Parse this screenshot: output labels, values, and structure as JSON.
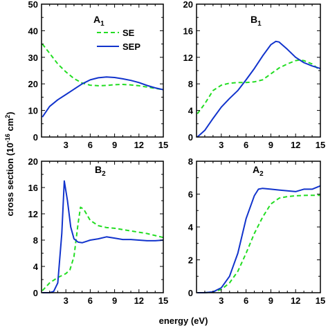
{
  "figure": {
    "xlabel": "energy (eV)",
    "ylabel_main": "cross section (10",
    "ylabel_exp1": "-16",
    "ylabel_mid": " cm",
    "ylabel_exp2": "2",
    "ylabel_end": ")"
  },
  "colors": {
    "SE": "#22dd22",
    "SEP": "#1133cc"
  },
  "legend": {
    "items": [
      "SE",
      "SEP"
    ],
    "placement": "top-right of panel A1"
  },
  "chart_data": [
    {
      "type": "line",
      "panel_main": "A",
      "panel_sub": "1",
      "xlim": [
        0,
        15
      ],
      "ylim": [
        0,
        50
      ],
      "xticks": [
        3,
        6,
        9,
        12,
        15
      ],
      "yticks": [
        0,
        10,
        20,
        30,
        40,
        50
      ],
      "series": [
        {
          "name": "SE",
          "style": "dashed",
          "x": [
            0.1,
            1,
            2,
            3,
            4,
            5,
            6,
            7,
            8,
            9,
            10,
            11,
            12,
            13,
            14,
            15
          ],
          "y": [
            35,
            31.5,
            27.5,
            24.5,
            22,
            20.3,
            19.5,
            19.3,
            19.4,
            19.7,
            19.8,
            19.6,
            19.3,
            18.8,
            18.3,
            17.8
          ]
        },
        {
          "name": "SEP",
          "style": "solid",
          "x": [
            0.1,
            1,
            2,
            3,
            4,
            5,
            6,
            7,
            8,
            9,
            10,
            11,
            12,
            13,
            14,
            15
          ],
          "y": [
            7.5,
            11.5,
            14,
            16,
            18,
            20,
            21.5,
            22.3,
            22.6,
            22.4,
            21.9,
            21.3,
            20.5,
            19.4,
            18.5,
            17.8
          ]
        }
      ]
    },
    {
      "type": "line",
      "panel_main": "B",
      "panel_sub": "1",
      "xlim": [
        0,
        15
      ],
      "ylim": [
        0,
        20
      ],
      "xticks": [
        3,
        6,
        9,
        12,
        15
      ],
      "yticks": [
        0,
        4,
        8,
        12,
        16,
        20
      ],
      "series": [
        {
          "name": "SE",
          "style": "dashed",
          "x": [
            0.1,
            1,
            2,
            3,
            4,
            5,
            6,
            7,
            8,
            9,
            10,
            11,
            12,
            12.5,
            13,
            14,
            15
          ],
          "y": [
            3.5,
            5,
            7,
            7.8,
            8.1,
            8.2,
            8.2,
            8.3,
            8.6,
            9.5,
            10.4,
            11,
            11.5,
            11.6,
            11.5,
            11,
            10
          ]
        },
        {
          "name": "SEP",
          "style": "solid",
          "x": [
            0.1,
            1,
            2,
            3,
            4,
            5,
            6,
            7,
            8,
            9,
            9.6,
            10,
            11,
            12,
            13,
            14,
            15
          ],
          "y": [
            0,
            1,
            2.8,
            4.5,
            5.8,
            7,
            8.6,
            10.3,
            12.2,
            13.9,
            14.4,
            14.3,
            13.2,
            12,
            11.2,
            10.7,
            10.3
          ]
        }
      ]
    },
    {
      "type": "line",
      "panel_main": "B",
      "panel_sub": "2",
      "xlim": [
        0,
        15
      ],
      "ylim": [
        0,
        20
      ],
      "xticks": [
        3,
        6,
        9,
        12,
        15
      ],
      "yticks": [
        0,
        4,
        8,
        12,
        16,
        20
      ],
      "series": [
        {
          "name": "SE",
          "style": "dashed",
          "x": [
            0.1,
            1,
            2,
            3,
            3.5,
            4,
            4.5,
            4.8,
            5.2,
            6,
            7,
            8,
            9,
            10,
            11,
            12,
            13,
            14,
            15
          ],
          "y": [
            0.3,
            1.5,
            2.3,
            2.9,
            3.5,
            5.5,
            10.5,
            13,
            12.7,
            11,
            10.2,
            9.9,
            9.8,
            9.6,
            9.4,
            9.2,
            9,
            8.7,
            8.4
          ]
        },
        {
          "name": "SEP",
          "style": "solid",
          "x": [
            0.1,
            1,
            1.5,
            2,
            2.5,
            2.8,
            3.2,
            3.6,
            4,
            4.5,
            5,
            6,
            7,
            8,
            9,
            10,
            11,
            12,
            13,
            14,
            15
          ],
          "y": [
            0,
            0,
            0.2,
            1.5,
            9,
            17,
            14,
            10,
            8.2,
            7.7,
            7.6,
            8,
            8.2,
            8.5,
            8.3,
            8.1,
            8.1,
            8,
            7.9,
            7.9,
            8
          ]
        }
      ]
    },
    {
      "type": "line",
      "panel_main": "A",
      "panel_sub": "2",
      "xlim": [
        0,
        15
      ],
      "ylim": [
        0,
        8
      ],
      "xticks": [
        3,
        6,
        9,
        12,
        15
      ],
      "yticks": [
        0,
        2,
        4,
        6,
        8
      ],
      "series": [
        {
          "name": "SE",
          "style": "dashed",
          "x": [
            0.1,
            1,
            2,
            3,
            4,
            5,
            6,
            7,
            8,
            9,
            10,
            11,
            12,
            13,
            14,
            15
          ],
          "y": [
            0,
            0,
            0.05,
            0.2,
            0.6,
            1.3,
            2.4,
            3.6,
            4.6,
            5.4,
            5.75,
            5.85,
            5.9,
            5.92,
            5.93,
            5.93
          ]
        },
        {
          "name": "SEP",
          "style": "solid",
          "x": [
            0.1,
            1,
            2,
            3,
            4,
            5,
            6,
            7,
            7.5,
            8,
            9,
            10,
            11,
            12,
            13,
            14,
            15
          ],
          "y": [
            0,
            0,
            0.05,
            0.3,
            1,
            2.4,
            4.5,
            5.9,
            6.3,
            6.35,
            6.3,
            6.25,
            6.2,
            6.15,
            6.3,
            6.3,
            6.5
          ]
        }
      ]
    }
  ]
}
